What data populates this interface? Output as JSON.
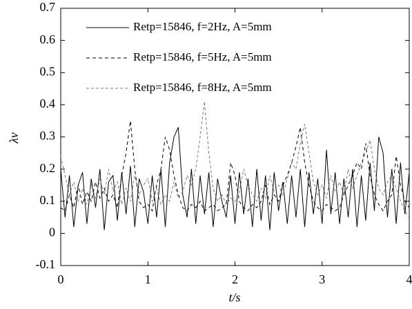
{
  "chart_data": {
    "type": "line",
    "xlabel": "t/s",
    "ylabel": "λv",
    "x": [
      0,
      0.05,
      0.1,
      0.15,
      0.2,
      0.25,
      0.3,
      0.35,
      0.4,
      0.45,
      0.5,
      0.55,
      0.6,
      0.65,
      0.7,
      0.75,
      0.8,
      0.85,
      0.9,
      0.95,
      1,
      1.05,
      1.1,
      1.15,
      1.2,
      1.25,
      1.3,
      1.35,
      1.4,
      1.45,
      1.5,
      1.55,
      1.6,
      1.65,
      1.7,
      1.75,
      1.8,
      1.85,
      1.9,
      1.95,
      2,
      2.05,
      2.1,
      2.15,
      2.2,
      2.25,
      2.3,
      2.35,
      2.4,
      2.45,
      2.5,
      2.55,
      2.6,
      2.65,
      2.7,
      2.75,
      2.8,
      2.85,
      2.9,
      2.95,
      3,
      3.05,
      3.1,
      3.15,
      3.2,
      3.25,
      3.3,
      3.35,
      3.4,
      3.45,
      3.5,
      3.55,
      3.6,
      3.65,
      3.7,
      3.75,
      3.8,
      3.85,
      3.9,
      3.95,
      4
    ],
    "series": [
      {
        "name": "Retp=15846, f=2Hz, A=5mm",
        "color": "#000000",
        "dash": "none",
        "values": [
          0.2,
          0.05,
          0.18,
          0.02,
          0.15,
          0.19,
          0.03,
          0.17,
          0.08,
          0.2,
          0.01,
          0.16,
          0.18,
          0.04,
          0.19,
          0.06,
          0.21,
          0.02,
          0.17,
          0.13,
          0.03,
          0.18,
          0.05,
          0.2,
          0.02,
          0.22,
          0.3,
          0.33,
          0.12,
          0.05,
          0.2,
          0.03,
          0.18,
          0.06,
          0.19,
          0.02,
          0.17,
          0.1,
          0.05,
          0.18,
          0.03,
          0.19,
          0.06,
          0.17,
          0.02,
          0.2,
          0.04,
          0.18,
          0.01,
          0.19,
          0.07,
          0.16,
          0.03,
          0.18,
          0.05,
          0.2,
          0.02,
          0.19,
          0.06,
          0.17,
          0.03,
          0.26,
          0.06,
          0.19,
          0.03,
          0.17,
          0.05,
          0.2,
          0.02,
          0.18,
          0.04,
          0.22,
          0.07,
          0.3,
          0.25,
          0.05,
          0.2,
          0.03,
          0.22,
          0.06,
          0.19
        ]
      },
      {
        "name": "Retp=15846, f=5Hz, A=5mm",
        "color": "#000000",
        "dash": "5,4",
        "values": [
          0.08,
          0.07,
          0.12,
          0.08,
          0.15,
          0.09,
          0.13,
          0.1,
          0.16,
          0.11,
          0.14,
          0.1,
          0.12,
          0.08,
          0.18,
          0.25,
          0.35,
          0.2,
          0.1,
          0.08,
          0.09,
          0.07,
          0.15,
          0.2,
          0.3,
          0.26,
          0.18,
          0.12,
          0.08,
          0.07,
          0.09,
          0.08,
          0.1,
          0.07,
          0.08,
          0.09,
          0.07,
          0.08,
          0.09,
          0.22,
          0.18,
          0.1,
          0.08,
          0.07,
          0.09,
          0.08,
          0.1,
          0.15,
          0.09,
          0.12,
          0.1,
          0.15,
          0.18,
          0.22,
          0.27,
          0.33,
          0.22,
          0.15,
          0.1,
          0.08,
          0.07,
          0.09,
          0.08,
          0.07,
          0.08,
          0.12,
          0.15,
          0.18,
          0.22,
          0.2,
          0.28,
          0.18,
          0.12,
          0.09,
          0.07,
          0.1,
          0.12,
          0.24,
          0.15,
          0.1,
          0.08
        ]
      },
      {
        "name": "Retp=15846, f=8Hz, A=5mm",
        "color": "#777777",
        "dash": "4,3",
        "values": [
          0.24,
          0.18,
          0.12,
          0.16,
          0.1,
          0.14,
          0.09,
          0.15,
          0.11,
          0.17,
          0.12,
          0.2,
          0.13,
          0.16,
          0.09,
          0.14,
          0.1,
          0.18,
          0.12,
          0.15,
          0.17,
          0.1,
          0.14,
          0.09,
          0.12,
          0.1,
          0.16,
          0.11,
          0.13,
          0.18,
          0.15,
          0.2,
          0.3,
          0.41,
          0.25,
          0.14,
          0.1,
          0.12,
          0.09,
          0.11,
          0.1,
          0.13,
          0.2,
          0.15,
          0.12,
          0.1,
          0.14,
          0.11,
          0.18,
          0.13,
          0.15,
          0.12,
          0.17,
          0.22,
          0.2,
          0.28,
          0.34,
          0.25,
          0.16,
          0.12,
          0.15,
          0.11,
          0.18,
          0.13,
          0.16,
          0.12,
          0.2,
          0.14,
          0.18,
          0.22,
          0.25,
          0.29,
          0.2,
          0.14,
          0.12,
          0.16,
          0.18,
          0.14,
          0.1,
          0.07,
          0.05
        ]
      }
    ],
    "xlim": [
      0,
      4
    ],
    "xticks": [
      0,
      1,
      2,
      3,
      4
    ],
    "ylim": [
      -0.1,
      0.7
    ],
    "yticks": [
      -0.1,
      0,
      0.1,
      0.2,
      0.3,
      0.4,
      0.5,
      0.6,
      0.7
    ],
    "legend": "upper left"
  }
}
